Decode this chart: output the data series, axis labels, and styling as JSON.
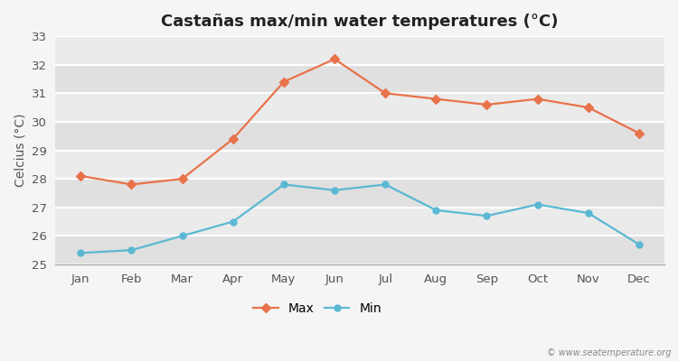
{
  "title": "Castañas max/min water temperatures (°C)",
  "ylabel": "Celcius (°C)",
  "months": [
    "Jan",
    "Feb",
    "Mar",
    "Apr",
    "May",
    "Jun",
    "Jul",
    "Aug",
    "Sep",
    "Oct",
    "Nov",
    "Dec"
  ],
  "max_temps": [
    28.1,
    27.8,
    28.0,
    29.4,
    31.4,
    32.2,
    31.0,
    30.8,
    30.6,
    30.8,
    30.5,
    29.6
  ],
  "min_temps": [
    25.4,
    25.5,
    26.0,
    26.5,
    27.8,
    27.6,
    27.8,
    26.9,
    26.7,
    27.1,
    26.8,
    25.7
  ],
  "max_color": "#e8724a",
  "min_color": "#5bb8d4",
  "fig_bg_color": "#f5f5f5",
  "plot_bg_color": "#e8e8e8",
  "band_color_light": "#ebebeb",
  "band_color_dark": "#e0e0e0",
  "grid_color": "#ffffff",
  "ylim": [
    25,
    33
  ],
  "yticks": [
    25,
    26,
    27,
    28,
    29,
    30,
    31,
    32,
    33
  ],
  "watermark": "© www.seatemperature.org",
  "title_fontsize": 13,
  "axis_label_fontsize": 10,
  "tick_fontsize": 9.5
}
